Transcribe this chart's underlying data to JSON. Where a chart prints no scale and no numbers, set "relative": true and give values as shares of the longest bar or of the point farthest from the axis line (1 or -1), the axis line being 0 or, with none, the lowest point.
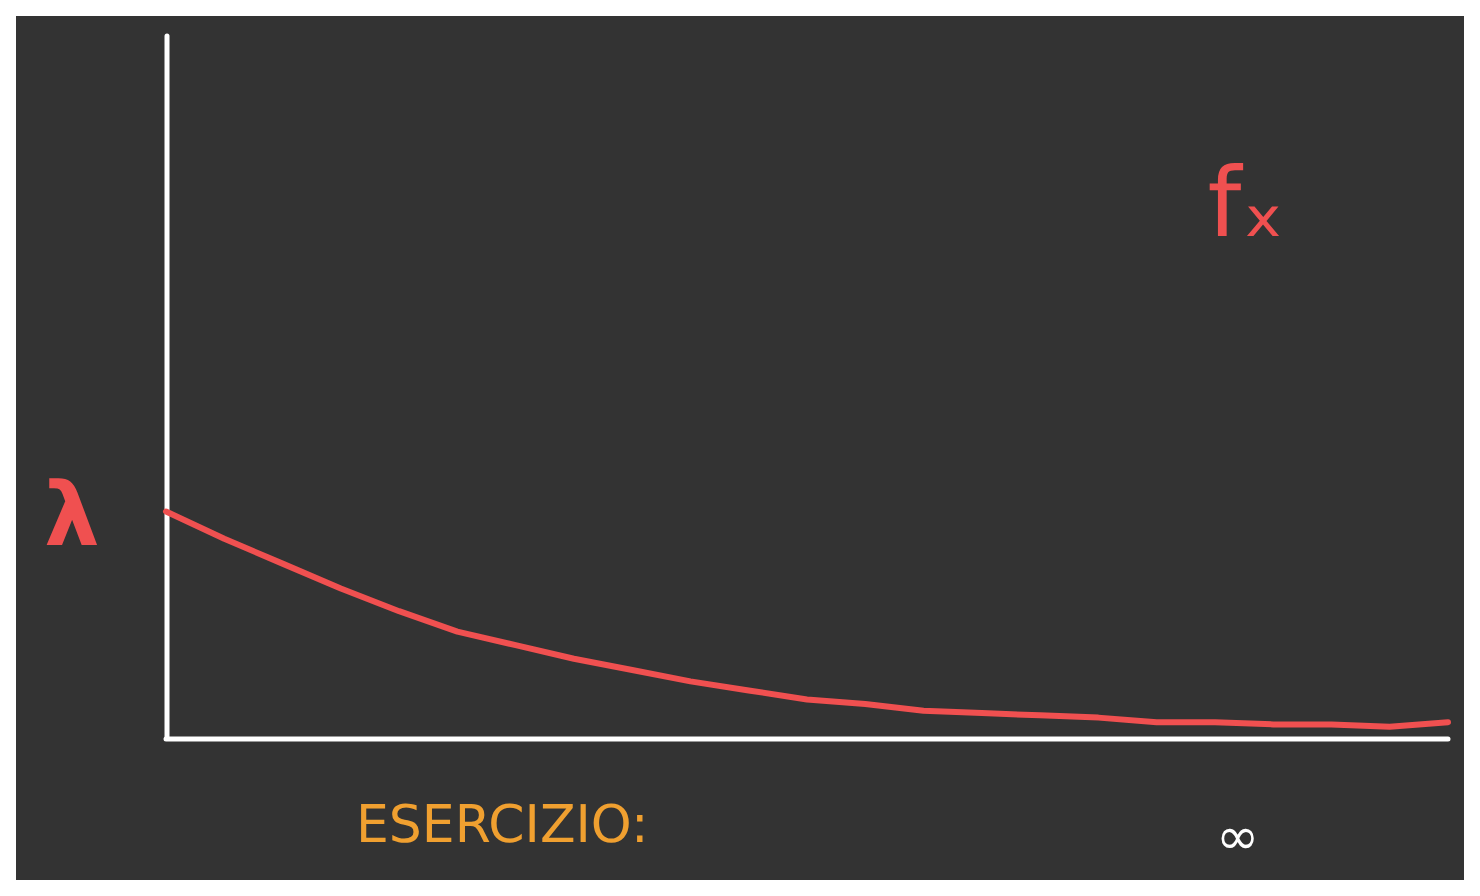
{
  "chart_data": {
    "type": "line",
    "relative": true,
    "categories": [
      null,
      null,
      null,
      null,
      null,
      null,
      null,
      null,
      null,
      null,
      null,
      null,
      null,
      null,
      null,
      null,
      null,
      null,
      null,
      null,
      null,
      null,
      null
    ],
    "series": [
      {
        "name": "fₓ",
        "color": "#f05050",
        "values": [
          1,
          0.88,
          0.77,
          0.66,
          0.56,
          0.47,
          0.41,
          0.35,
          0.3,
          0.25,
          0.21,
          0.17,
          0.15,
          0.12,
          0.11,
          0.1,
          0.09,
          0.07,
          0.07,
          0.06,
          0.06,
          0.05,
          0.07
        ]
      }
    ],
    "annotations": [
      "λ",
      "ESERCIZIO:",
      "∞"
    ],
    "legend": false,
    "grid": false,
    "marker": "none",
    "line_style": "solid"
  }
}
